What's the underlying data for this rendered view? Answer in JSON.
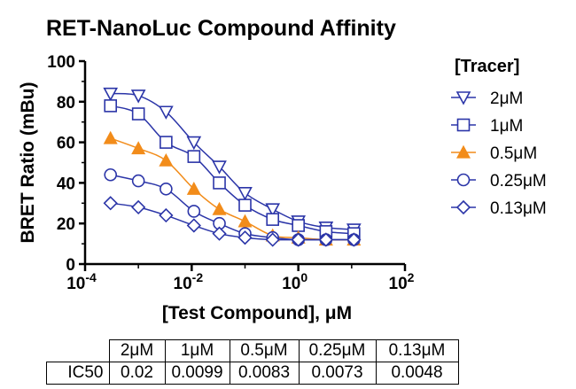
{
  "chart_data": {
    "type": "line",
    "title": "RET-NanoLuc Compound Affinity",
    "xlabel": "[Test Compound], μM",
    "ylabel": "BRET Ratio (mBu)",
    "x_scale": "log",
    "xlim": [
      0.0001,
      100
    ],
    "ylim": [
      0,
      100
    ],
    "x_ticks": [
      {
        "base": "10",
        "exp": "-4"
      },
      {
        "base": "10",
        "exp": "-2"
      },
      {
        "base": "10",
        "exp": "0"
      },
      {
        "base": "10",
        "exp": "2"
      }
    ],
    "y_ticks": [
      "0",
      "20",
      "40",
      "60",
      "80",
      "100"
    ],
    "legend_title": "[Tracer]",
    "legend_position": "right",
    "x": [
      0.0003,
      0.001,
      0.0033,
      0.011,
      0.033,
      0.1,
      0.33,
      1.0,
      3.3,
      11
    ],
    "series": [
      {
        "name": "2μM",
        "marker": "triangle-down",
        "color": "#2b35a8",
        "values": [
          84,
          83,
          75,
          60,
          48,
          35,
          27,
          21,
          18,
          17
        ]
      },
      {
        "name": "1μM",
        "marker": "square",
        "color": "#2b35a8",
        "values": [
          78,
          74,
          60,
          53,
          40,
          29,
          22,
          19,
          16,
          15
        ]
      },
      {
        "name": "0.5μM",
        "marker": "triangle-filled",
        "color": "#f28c1a",
        "values": [
          62,
          57,
          51,
          37,
          27,
          21,
          14,
          13,
          12,
          12
        ]
      },
      {
        "name": "0.25μM",
        "marker": "circle",
        "color": "#2b35a8",
        "values": [
          44,
          41,
          37,
          26,
          20,
          15,
          13,
          12,
          12,
          12
        ]
      },
      {
        "name": "0.13μM",
        "marker": "diamond",
        "color": "#2b35a8",
        "values": [
          30,
          28,
          24,
          19,
          15,
          13,
          12,
          12,
          12,
          12
        ]
      }
    ]
  },
  "table": {
    "columns": [
      "2μM",
      "1μM",
      "0.5μM",
      "0.25μM",
      "0.13μM"
    ],
    "row_label": "IC50",
    "values": [
      "0.02",
      "0.0099",
      "0.0083",
      "0.0073",
      "0.0048"
    ]
  }
}
